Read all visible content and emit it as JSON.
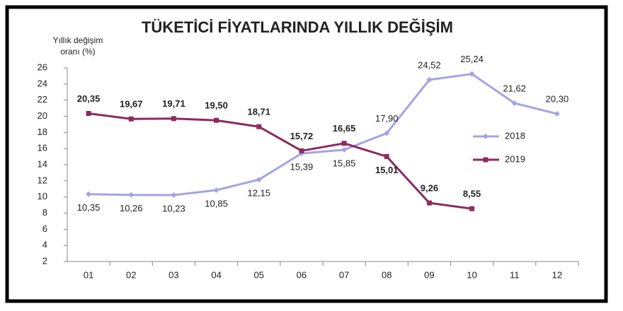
{
  "chart_data": {
    "type": "line",
    "title": "TÜKETİCİ FİYATLARINDA YILLIK DEĞİŞİM",
    "ylabel": [
      "Yıllık  değişim",
      "oranı (%)"
    ],
    "categories": [
      "01",
      "02",
      "03",
      "04",
      "05",
      "06",
      "07",
      "08",
      "09",
      "10",
      "11",
      "12"
    ],
    "series": [
      {
        "name": "2018",
        "color": "#a4a4e4",
        "values": [
          10.35,
          10.26,
          10.23,
          10.85,
          12.15,
          15.39,
          15.85,
          17.9,
          24.52,
          25.24,
          21.62,
          20.3
        ],
        "value_labels": [
          "10,35",
          "10,26",
          "10,23",
          "10,85",
          "12,15",
          "15,39",
          "15,85",
          "17,90",
          "24,52",
          "25,24",
          "21,62",
          "20,30"
        ]
      },
      {
        "name": "2019",
        "color": "#8c2b5c",
        "values": [
          20.35,
          19.67,
          19.71,
          19.5,
          18.71,
          15.72,
          16.65,
          15.01,
          9.26,
          8.55,
          null,
          null
        ],
        "value_labels": [
          "20,35",
          "19,67",
          "19,71",
          "19,50",
          "18,71",
          "15,72",
          "16,65",
          "15,01",
          "9,26",
          "8,55",
          null,
          null
        ]
      }
    ],
    "ylim": [
      2,
      26
    ],
    "yticks": [
      2,
      4,
      6,
      8,
      10,
      12,
      14,
      16,
      18,
      20,
      22,
      24,
      26
    ],
    "grid": false,
    "legend": "right"
  }
}
